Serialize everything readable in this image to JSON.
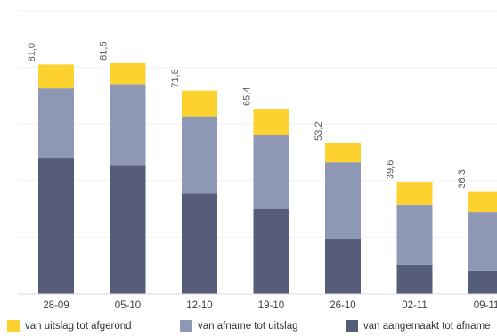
{
  "chart_data": {
    "type": "bar",
    "stacked": true,
    "categories": [
      "28-09",
      "05-10",
      "12-10",
      "19-10",
      "26-10",
      "02-11",
      "09-11"
    ],
    "totals": [
      "81,0",
      "81,5",
      "71,8",
      "65,4",
      "53,2",
      "39,6",
      "36,3"
    ],
    "series": [
      {
        "name": "van aangemaakt tot afname",
        "color": "#555d79",
        "values": [
          48.1,
          45.5,
          35.4,
          29.9,
          19.5,
          10.4,
          8.2
        ]
      },
      {
        "name": "van afname tot uitslag",
        "color": "#8e98b4",
        "values": [
          24.5,
          28.6,
          27.3,
          26.2,
          27.0,
          21.1,
          20.7
        ]
      },
      {
        "name": "van uitslag tot afgerond",
        "color": "#fdd22f",
        "values": [
          8.4,
          7.4,
          9.1,
          9.3,
          6.7,
          8.1,
          7.4
        ]
      }
    ],
    "ylim": [
      0,
      100
    ],
    "grid": true,
    "legend_position": "bottom"
  }
}
